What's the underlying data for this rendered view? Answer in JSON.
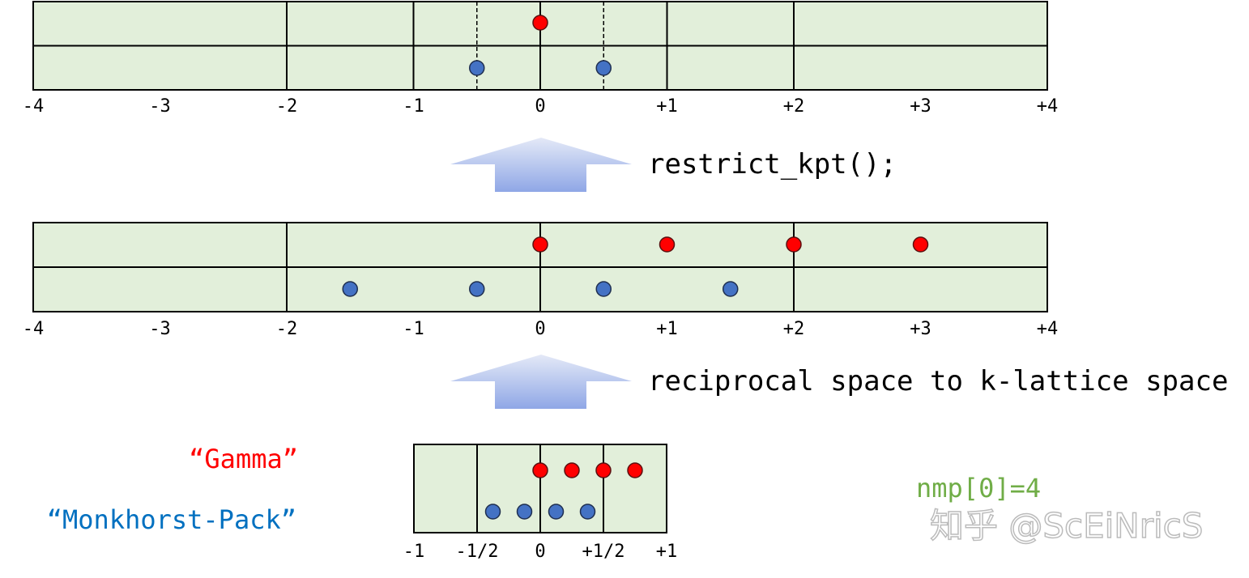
{
  "colors": {
    "panel_fill": "#e2efda",
    "gamma": "#ff0000",
    "monkhorst_pack": "#4472c4",
    "mp_label": "#0070c0",
    "nmp": "#70ad47",
    "arrow_top": "#e4e9f7",
    "arrow_bottom": "#8fa7e6"
  },
  "panels": [
    {
      "id": "restricted",
      "range": [
        -4,
        4
      ],
      "grid_lines": [
        -2,
        -1,
        0,
        1,
        2
      ],
      "dashed_lines": [
        -0.5,
        0.5
      ],
      "two_rows": true,
      "ticks": [
        "-4",
        "-3",
        "-2",
        "-1",
        "0",
        "+1",
        "+2",
        "+3",
        "+4"
      ],
      "tick_values": [
        -4,
        -3,
        -2,
        -1,
        0,
        1,
        2,
        3,
        4
      ],
      "gamma_points": [
        0
      ],
      "mp_points": [
        -0.5,
        0.5
      ]
    },
    {
      "id": "k-lattice",
      "range": [
        -4,
        4
      ],
      "grid_lines": [
        -2,
        0,
        2
      ],
      "dashed_lines": [],
      "two_rows": true,
      "ticks": [
        "-4",
        "-3",
        "-2",
        "-1",
        "0",
        "+1",
        "+2",
        "+3",
        "+4"
      ],
      "tick_values": [
        -4,
        -3,
        -2,
        -1,
        0,
        1,
        2,
        3,
        4
      ],
      "gamma_points": [
        0,
        1,
        2,
        3
      ],
      "mp_points": [
        -1.5,
        -0.5,
        0.5,
        1.5
      ]
    },
    {
      "id": "reciprocal",
      "range": [
        -1,
        1
      ],
      "grid_lines": [
        -0.5,
        0,
        0.5
      ],
      "dashed_lines": [],
      "two_rows": false,
      "ticks": [
        "-1",
        "-1/2",
        "0",
        "+1/2",
        "+1"
      ],
      "tick_values": [
        -1,
        -0.5,
        0,
        0.5,
        1
      ],
      "gamma_points": [
        0,
        0.25,
        0.5,
        0.75
      ],
      "mp_points": [
        -0.375,
        -0.125,
        0.125,
        0.375
      ]
    }
  ],
  "arrows": [
    {
      "label": "restrict_kpt();"
    },
    {
      "label": "reciprocal space to k-lattice space"
    }
  ],
  "legend": {
    "gamma": "“Gamma”",
    "monkhorst_pack": "“Monkhorst-Pack”"
  },
  "nmp_label": "nmp[0]=4",
  "watermark": "知乎 @ScEiNricS"
}
